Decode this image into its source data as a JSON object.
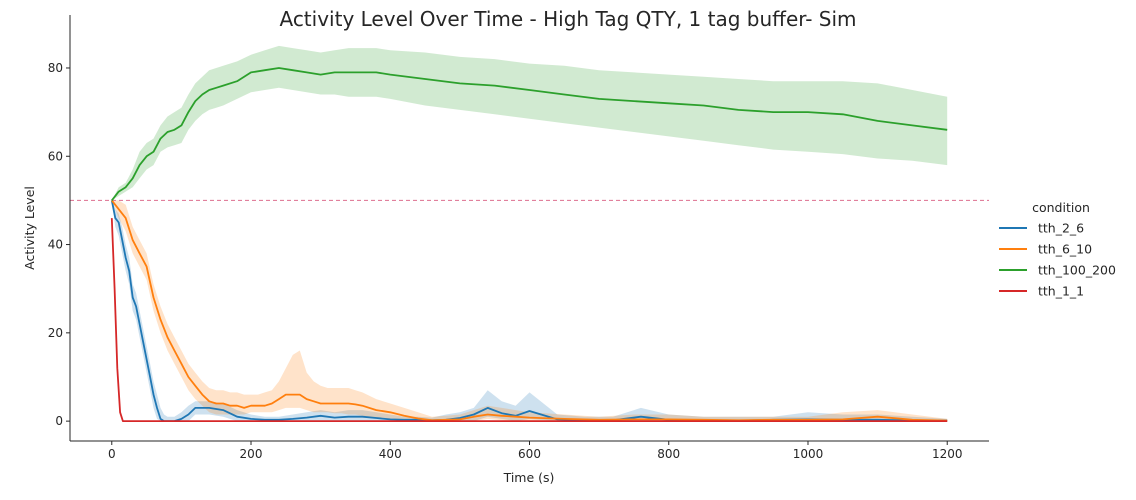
{
  "chart_data": {
    "type": "line",
    "title": "Activity Level Over Time - High Tag QTY, 1 tag buffer- Sim",
    "xlabel": "Time (s)",
    "ylabel": "Activity Level",
    "xlim": [
      -60,
      1260
    ],
    "ylim": [
      -4.5,
      92
    ],
    "xticks": [
      0,
      200,
      400,
      600,
      800,
      1000,
      1200
    ],
    "yticks": [
      0,
      20,
      40,
      60,
      80
    ],
    "reference_line": {
      "y": 50,
      "color": "#dd6f8f",
      "style": "dashed"
    },
    "legend": {
      "title": "condition",
      "placement": "right"
    },
    "series": [
      {
        "name": "tth_2_6",
        "color": "#1f77b4",
        "x": [
          0,
          5,
          10,
          15,
          20,
          25,
          30,
          35,
          40,
          45,
          50,
          55,
          60,
          65,
          70,
          75,
          80,
          90,
          100,
          110,
          120,
          140,
          160,
          180,
          200,
          220,
          240,
          260,
          280,
          300,
          320,
          340,
          360,
          380,
          400,
          420,
          440,
          460,
          480,
          500,
          520,
          540,
          560,
          580,
          600,
          640,
          680,
          720,
          760,
          800,
          850,
          900,
          950,
          1000,
          1050,
          1100,
          1150,
          1200
        ],
        "y": [
          50,
          46,
          45,
          41,
          37,
          34,
          28,
          26,
          22,
          18,
          14,
          10,
          6,
          3,
          0.5,
          0,
          0,
          0,
          0.5,
          1.5,
          3,
          3,
          2.5,
          1,
          0.5,
          0.3,
          0.3,
          0.5,
          0.8,
          1.2,
          0.8,
          1,
          1,
          0.7,
          0.4,
          0.3,
          0.3,
          0.2,
          0.3,
          0.7,
          1.5,
          3,
          1.8,
          1.2,
          2.3,
          0.4,
          0.2,
          0.2,
          1,
          0.3,
          0.1,
          0.1,
          0.3,
          0.4,
          0.3,
          0.3,
          0.2,
          0.1
        ],
        "lower": [
          50,
          44,
          42,
          38,
          34,
          31,
          25,
          23,
          19,
          15,
          11,
          7,
          3,
          0.5,
          0,
          0,
          0,
          0,
          0,
          0,
          1.5,
          1.5,
          1,
          0,
          0,
          0,
          0,
          0,
          0,
          0,
          0,
          0,
          0,
          0,
          0,
          0,
          0,
          0,
          0,
          0,
          0,
          1,
          0.5,
          0,
          0.5,
          0,
          0,
          0,
          0,
          0,
          0,
          0,
          0,
          0,
          0,
          0,
          0,
          0
        ],
        "upper": [
          50,
          48,
          47,
          44,
          40,
          37,
          31,
          29,
          25,
          21,
          17,
          13,
          9,
          6,
          3,
          1.5,
          1,
          1,
          2,
          3.5,
          4.5,
          4.5,
          4,
          2.5,
          1.5,
          1,
          1,
          1.5,
          2,
          2.5,
          2,
          2.5,
          2.5,
          2,
          1.5,
          1,
          1,
          0.8,
          1.5,
          2,
          3,
          7,
          4.5,
          3.5,
          6.5,
          1.5,
          1,
          1,
          3,
          1.5,
          1,
          1,
          1,
          2,
          1.5,
          1.5,
          1,
          0.5
        ]
      },
      {
        "name": "tth_6_10",
        "color": "#ff7f0e",
        "x": [
          0,
          10,
          20,
          30,
          40,
          50,
          60,
          70,
          80,
          90,
          100,
          110,
          120,
          130,
          140,
          150,
          160,
          170,
          180,
          190,
          200,
          210,
          220,
          230,
          240,
          250,
          260,
          270,
          280,
          290,
          300,
          310,
          320,
          330,
          340,
          350,
          360,
          380,
          400,
          420,
          440,
          460,
          480,
          500,
          520,
          540,
          560,
          580,
          600,
          650,
          700,
          750,
          800,
          850,
          900,
          950,
          1000,
          1050,
          1100,
          1150,
          1200
        ],
        "y": [
          50,
          48,
          46,
          41,
          38,
          35,
          28,
          23,
          19,
          16,
          13,
          10,
          8,
          6,
          4.5,
          4,
          4,
          3.5,
          3.5,
          3,
          3.5,
          3.5,
          3.5,
          4,
          5,
          6,
          6,
          6,
          5,
          4.5,
          4,
          4,
          4,
          4,
          4,
          3.8,
          3.5,
          2.5,
          2,
          1.2,
          0.6,
          0.2,
          0.3,
          0.4,
          1,
          1.5,
          1.2,
          1,
          0.8,
          0.5,
          0.3,
          0.4,
          0.4,
          0.3,
          0.2,
          0.3,
          0.3,
          0.4,
          1,
          0.3,
          0.1
        ],
        "lower": [
          50,
          46,
          43,
          38,
          35,
          32,
          25,
          20,
          16,
          13,
          10,
          7,
          5,
          3.5,
          2,
          1.5,
          1.5,
          1.5,
          1.5,
          1.5,
          2,
          2,
          2,
          2,
          2.5,
          3,
          3,
          3,
          2.5,
          2,
          2,
          2,
          1.8,
          1.8,
          1.5,
          1.5,
          1.2,
          0.8,
          0.5,
          0.2,
          0,
          0,
          0,
          0,
          0,
          0.5,
          0.2,
          0,
          0,
          0,
          0,
          0,
          0,
          0,
          0,
          0,
          0,
          0,
          0,
          0,
          0
        ],
        "upper": [
          50,
          50,
          49,
          44,
          41,
          38,
          31,
          26,
          22,
          19,
          16,
          13,
          11,
          9,
          7.5,
          7,
          7,
          6.5,
          6.5,
          6,
          6,
          6,
          6.5,
          7,
          9,
          12,
          15,
          16,
          11,
          9,
          8,
          7.5,
          7.5,
          7.5,
          7.5,
          7,
          6.5,
          5,
          4,
          3,
          2,
          1,
          1.2,
          1.5,
          2.5,
          3.5,
          3,
          2.5,
          2,
          1.5,
          1,
          1.5,
          1.5,
          1,
          1,
          1,
          1,
          2,
          2.5,
          1.5,
          0.5
        ]
      },
      {
        "name": "tth_100_200",
        "color": "#2ca02c",
        "x": [
          0,
          10,
          20,
          30,
          40,
          50,
          60,
          70,
          80,
          90,
          100,
          110,
          120,
          130,
          140,
          150,
          160,
          180,
          200,
          220,
          240,
          260,
          280,
          300,
          320,
          340,
          360,
          380,
          400,
          450,
          500,
          550,
          600,
          650,
          700,
          750,
          800,
          850,
          900,
          950,
          1000,
          1050,
          1100,
          1150,
          1200
        ],
        "y": [
          50,
          52,
          53,
          55,
          58,
          60,
          61,
          64,
          65.5,
          66,
          67,
          70,
          72.5,
          74,
          75,
          75.5,
          76,
          77,
          79,
          79.5,
          80,
          79.5,
          79,
          78.5,
          79,
          79,
          79,
          79,
          78.5,
          77.5,
          76.5,
          76,
          75,
          74,
          73,
          72.5,
          72,
          71.5,
          70.5,
          70,
          70,
          69.5,
          68,
          67,
          66
        ],
        "lower": [
          50,
          51,
          52,
          53,
          55,
          57,
          58,
          61,
          62,
          62.5,
          63,
          66,
          68,
          69.5,
          70.5,
          71,
          71.5,
          73,
          74.5,
          75,
          75.5,
          75,
          74.5,
          74,
          74,
          73.5,
          73.5,
          73.5,
          73,
          71.5,
          70.5,
          69.5,
          68.5,
          67.5,
          66.5,
          65.5,
          64.5,
          63.5,
          62.5,
          61.5,
          61,
          60.5,
          59.5,
          59,
          58
        ],
        "upper": [
          50,
          53,
          54,
          57,
          61,
          63,
          64,
          67,
          69,
          70,
          71,
          74,
          76.5,
          78,
          79.5,
          80,
          80.5,
          81.5,
          83,
          84,
          85,
          84.5,
          84,
          83.5,
          84,
          84.5,
          84.5,
          84.5,
          84,
          83.5,
          82.5,
          82,
          81,
          80.5,
          79.5,
          79,
          78.5,
          78,
          77.5,
          77,
          77,
          77,
          76.5,
          75,
          73.5
        ]
      },
      {
        "name": "tth_1_1",
        "color": "#d62728",
        "x": [
          0,
          4,
          8,
          12,
          16,
          20,
          40,
          100,
          200,
          400,
          600,
          800,
          1000,
          1200
        ],
        "y": [
          46,
          30,
          12,
          2,
          0,
          0,
          0,
          0,
          0,
          0,
          0,
          0,
          0,
          0
        ]
      }
    ]
  }
}
